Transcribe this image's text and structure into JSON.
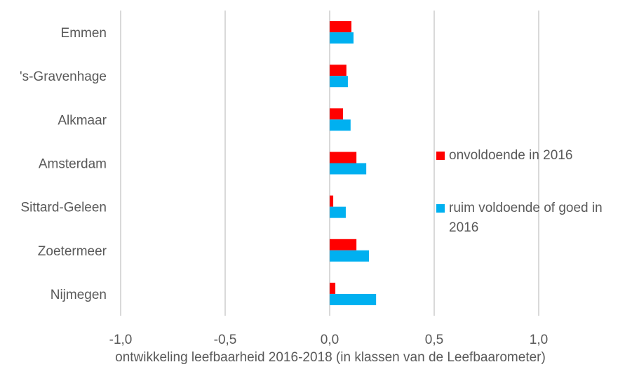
{
  "chart_data": {
    "type": "barh",
    "x_label": "ontwikkeling leefbaarheid 2016-2018 (in klassen van de Leefbaarometer)",
    "categories": [
      "Emmen",
      "'s-Gravenhage",
      "Alkmaar",
      "Amsterdam",
      "Sittard-Geleen",
      "Zoetermeer",
      "Nijmegen"
    ],
    "series": [
      {
        "name": "onvoldoende in 2016",
        "color": "#ff0000",
        "values": [
          0.104,
          0.08,
          0.064,
          0.128,
          0.017,
          0.128,
          0.027
        ]
      },
      {
        "name": "ruim voldoende of goed in 2016",
        "color": "#00b0f0",
        "values": [
          0.114,
          0.087,
          0.1,
          0.175,
          0.077,
          0.188,
          0.222
        ]
      }
    ],
    "xlim": [
      -1,
      1
    ],
    "xticks": [
      {
        "value": -1,
        "label": "-1,0"
      },
      {
        "value": -0.5,
        "label": "-0,5"
      },
      {
        "value": 0,
        "label": "0,0"
      },
      {
        "value": 0.5,
        "label": "0,5"
      },
      {
        "value": 1,
        "label": "1,0"
      }
    ],
    "grid": true,
    "legend": "right"
  }
}
